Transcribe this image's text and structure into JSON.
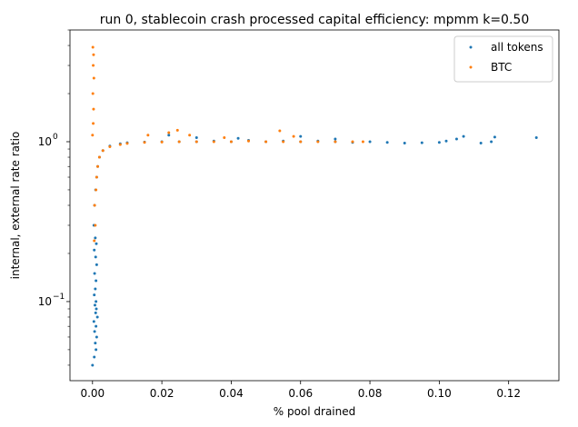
{
  "chart_data": {
    "type": "scatter",
    "title": "run 0, stablecoin crash processed capital efficiency: mpmm k=0.50",
    "xlabel": "% pool drained",
    "ylabel": "internal, external rate ratio",
    "xlim": [
      -0.0065,
      0.1345
    ],
    "ylim": [
      0.032,
      5.0
    ],
    "yscale": "log",
    "x_ticks": [
      0.0,
      0.02,
      0.04,
      0.06,
      0.08,
      0.1,
      0.12
    ],
    "x_tick_labels": [
      "0.00",
      "0.02",
      "0.04",
      "0.06",
      "0.08",
      "0.10",
      "0.12"
    ],
    "y_ticks_major": [
      0.1,
      1
    ],
    "y_tick_labels": [
      "10",
      "10"
    ],
    "y_tick_exponents": [
      "−1",
      "0"
    ],
    "legend_position": "top-right",
    "grid": false,
    "series": [
      {
        "name": "all tokens",
        "color": "#1f77b4",
        "points": [
          [
            0.0,
            0.04
          ],
          [
            0.0005,
            0.045
          ],
          [
            0.001,
            0.05
          ],
          [
            0.0008,
            0.055
          ],
          [
            0.0012,
            0.06
          ],
          [
            0.0006,
            0.065
          ],
          [
            0.001,
            0.07
          ],
          [
            0.0004,
            0.075
          ],
          [
            0.0014,
            0.08
          ],
          [
            0.0009,
            0.085
          ],
          [
            0.0011,
            0.09
          ],
          [
            0.0007,
            0.095
          ],
          [
            0.001,
            0.1
          ],
          [
            0.0005,
            0.11
          ],
          [
            0.0008,
            0.12
          ],
          [
            0.001,
            0.135
          ],
          [
            0.0006,
            0.15
          ],
          [
            0.0012,
            0.17
          ],
          [
            0.0009,
            0.19
          ],
          [
            0.0005,
            0.21
          ],
          [
            0.0011,
            0.23
          ],
          [
            0.0008,
            0.25
          ],
          [
            0.0004,
            0.3
          ],
          [
            0.0006,
            0.4
          ],
          [
            0.0009,
            0.5
          ],
          [
            0.0012,
            0.6
          ],
          [
            0.0015,
            0.7
          ],
          [
            0.002,
            0.8
          ],
          [
            0.003,
            0.88
          ],
          [
            0.005,
            0.94
          ],
          [
            0.008,
            0.97
          ],
          [
            0.01,
            0.985
          ],
          [
            0.015,
            0.995
          ],
          [
            0.02,
            1.0
          ],
          [
            0.025,
            1.0
          ],
          [
            0.03,
            1.0
          ],
          [
            0.035,
            1.01
          ],
          [
            0.04,
            1.0
          ],
          [
            0.045,
            1.02
          ],
          [
            0.05,
            1.0
          ],
          [
            0.055,
            1.01
          ],
          [
            0.06,
            1.0
          ],
          [
            0.065,
            1.01
          ],
          [
            0.07,
            1.0
          ],
          [
            0.075,
            0.99
          ],
          [
            0.08,
            1.0
          ],
          [
            0.085,
            0.99
          ],
          [
            0.09,
            0.98
          ],
          [
            0.095,
            0.985
          ],
          [
            0.1,
            0.99
          ],
          [
            0.102,
            1.01
          ],
          [
            0.105,
            1.04
          ],
          [
            0.107,
            1.08
          ],
          [
            0.112,
            0.98
          ],
          [
            0.115,
            1.0
          ],
          [
            0.116,
            1.07
          ],
          [
            0.128,
            1.06
          ],
          [
            0.022,
            1.1
          ],
          [
            0.03,
            1.06
          ],
          [
            0.042,
            1.05
          ],
          [
            0.06,
            1.08
          ],
          [
            0.07,
            1.04
          ]
        ]
      },
      {
        "name": "BTC",
        "color": "#ff7f0e",
        "points": [
          [
            0.0005,
            0.24
          ],
          [
            0.0008,
            0.3
          ],
          [
            0.0006,
            0.4
          ],
          [
            0.001,
            0.5
          ],
          [
            0.0012,
            0.6
          ],
          [
            0.0015,
            0.7
          ],
          [
            0.002,
            0.8
          ],
          [
            0.003,
            0.88
          ],
          [
            0.005,
            0.93
          ],
          [
            0.008,
            0.96
          ],
          [
            0.01,
            0.975
          ],
          [
            0.015,
            0.99
          ],
          [
            0.02,
            0.995
          ],
          [
            0.025,
            1.0
          ],
          [
            0.03,
            1.0
          ],
          [
            0.035,
            1.0
          ],
          [
            0.04,
            1.0
          ],
          [
            0.045,
            1.01
          ],
          [
            0.05,
            1.0
          ],
          [
            0.055,
            1.0
          ],
          [
            0.06,
            1.0
          ],
          [
            0.065,
            1.0
          ],
          [
            0.07,
            1.0
          ],
          [
            0.075,
            1.0
          ],
          [
            0.078,
            1.0
          ],
          [
            0.0,
            1.1
          ],
          [
            0.0002,
            1.3
          ],
          [
            0.0003,
            1.6
          ],
          [
            0.0001,
            2.0
          ],
          [
            0.0004,
            2.5
          ],
          [
            0.0002,
            3.0
          ],
          [
            0.0003,
            3.5
          ],
          [
            0.0001,
            3.9
          ],
          [
            0.016,
            1.1
          ],
          [
            0.022,
            1.14
          ],
          [
            0.0245,
            1.18
          ],
          [
            0.028,
            1.1
          ],
          [
            0.038,
            1.06
          ],
          [
            0.054,
            1.17
          ],
          [
            0.058,
            1.08
          ]
        ]
      }
    ]
  }
}
